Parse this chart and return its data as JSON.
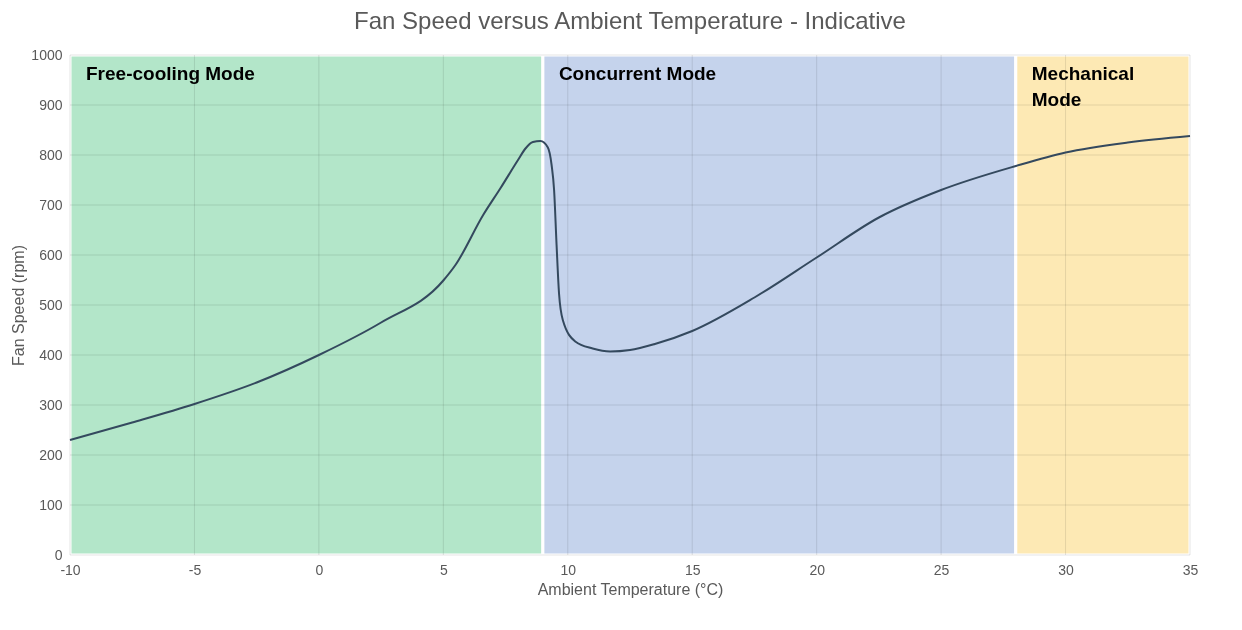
{
  "chart_data": {
    "type": "line",
    "title": "Fan Speed versus Ambient Temperature - Indicative",
    "xlabel": "Ambient Temperature (°C)",
    "ylabel": "Fan Speed (rpm)",
    "x": [
      -10,
      -7.5,
      -5,
      -2.5,
      0,
      2.5,
      5,
      5.5,
      6.6,
      7.3,
      8,
      8.3,
      8.6,
      8.9,
      9.2,
      9.35,
      9.45,
      9.55,
      9.65,
      9.8,
      10.3,
      11,
      11.7,
      12.5,
      13.5,
      15,
      17.5,
      20,
      22.5,
      25,
      28,
      30,
      32.5,
      35
    ],
    "series": [
      {
        "color": "#34495e",
        "values": [
          230,
          265,
          302,
          345,
          400,
          465,
          549,
          581,
          680,
          734,
          790,
          813,
          826,
          828,
          815,
          780,
          730,
          620,
          522,
          470,
          427,
          413,
          407,
          410,
          422,
          448,
          515,
          595,
          675,
          730,
          778,
          805,
          825,
          838
        ]
      }
    ],
    "xlim": [
      -10,
      35
    ],
    "xticks": [
      -10,
      -5,
      0,
      5,
      10,
      15,
      20,
      25,
      30,
      35
    ],
    "ylim": [
      0,
      1000
    ],
    "yticks": [
      0,
      100,
      200,
      300,
      400,
      500,
      600,
      700,
      800,
      900,
      1000
    ],
    "grid": true,
    "marker": "none",
    "line_style": "solid",
    "bands": [
      {
        "axis": "x",
        "from": -10,
        "to": 9,
        "label": "Free-cooling Mode",
        "color": "#b3e6c9"
      },
      {
        "axis": "x",
        "from": 9,
        "to": 28,
        "label": "Concurrent Mode",
        "color": "#c5d3ec"
      },
      {
        "axis": "x",
        "from": 28,
        "to": 35,
        "label": "Mechanical Mode",
        "color": "#fde9b4"
      }
    ]
  }
}
